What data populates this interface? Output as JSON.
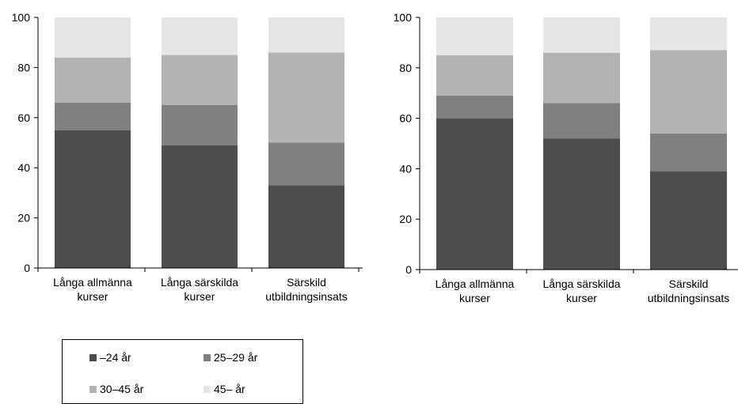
{
  "chart_data": [
    {
      "type": "bar",
      "stacked": true,
      "categories": [
        [
          "Långa allmänna",
          "kurser"
        ],
        [
          "Långa särskilda",
          "kurser"
        ],
        [
          "Särskild",
          "utbildningsinsats"
        ]
      ],
      "ylim": [
        0,
        100
      ],
      "yticks": [
        0,
        20,
        40,
        60,
        80,
        100
      ],
      "grid": false,
      "series": [
        {
          "name": "–24 år",
          "values": [
            55,
            49,
            33
          ]
        },
        {
          "name": "25–29 år",
          "values": [
            11,
            16,
            17
          ]
        },
        {
          "name": "30–45 år",
          "values": [
            18,
            20,
            36
          ]
        },
        {
          "name": "45– år",
          "values": [
            16,
            15,
            14
          ]
        }
      ]
    },
    {
      "type": "bar",
      "stacked": true,
      "categories": [
        [
          "Långa allmänna",
          "kurser"
        ],
        [
          "Långa särskilda",
          "kurser"
        ],
        [
          "Särskild",
          "utbildningsinsats"
        ]
      ],
      "ylim": [
        0,
        100
      ],
      "yticks": [
        0,
        20,
        40,
        60,
        80,
        100
      ],
      "grid": false,
      "series": [
        {
          "name": "–24 år",
          "values": [
            60,
            52,
            39
          ]
        },
        {
          "name": "25–29 år",
          "values": [
            9,
            14,
            15
          ]
        },
        {
          "name": "30–45 år",
          "values": [
            16,
            20,
            33
          ]
        },
        {
          "name": "45– år",
          "values": [
            15,
            14,
            13
          ]
        }
      ]
    }
  ],
  "legend": {
    "placement": "bottom-left",
    "items": [
      {
        "label": "–24 år",
        "color": "#4d4d4d"
      },
      {
        "label": "25–29 år",
        "color": "#808080"
      },
      {
        "label": "30–45 år",
        "color": "#b3b3b3"
      },
      {
        "label": "45– år",
        "color": "#e6e6e6"
      }
    ]
  }
}
